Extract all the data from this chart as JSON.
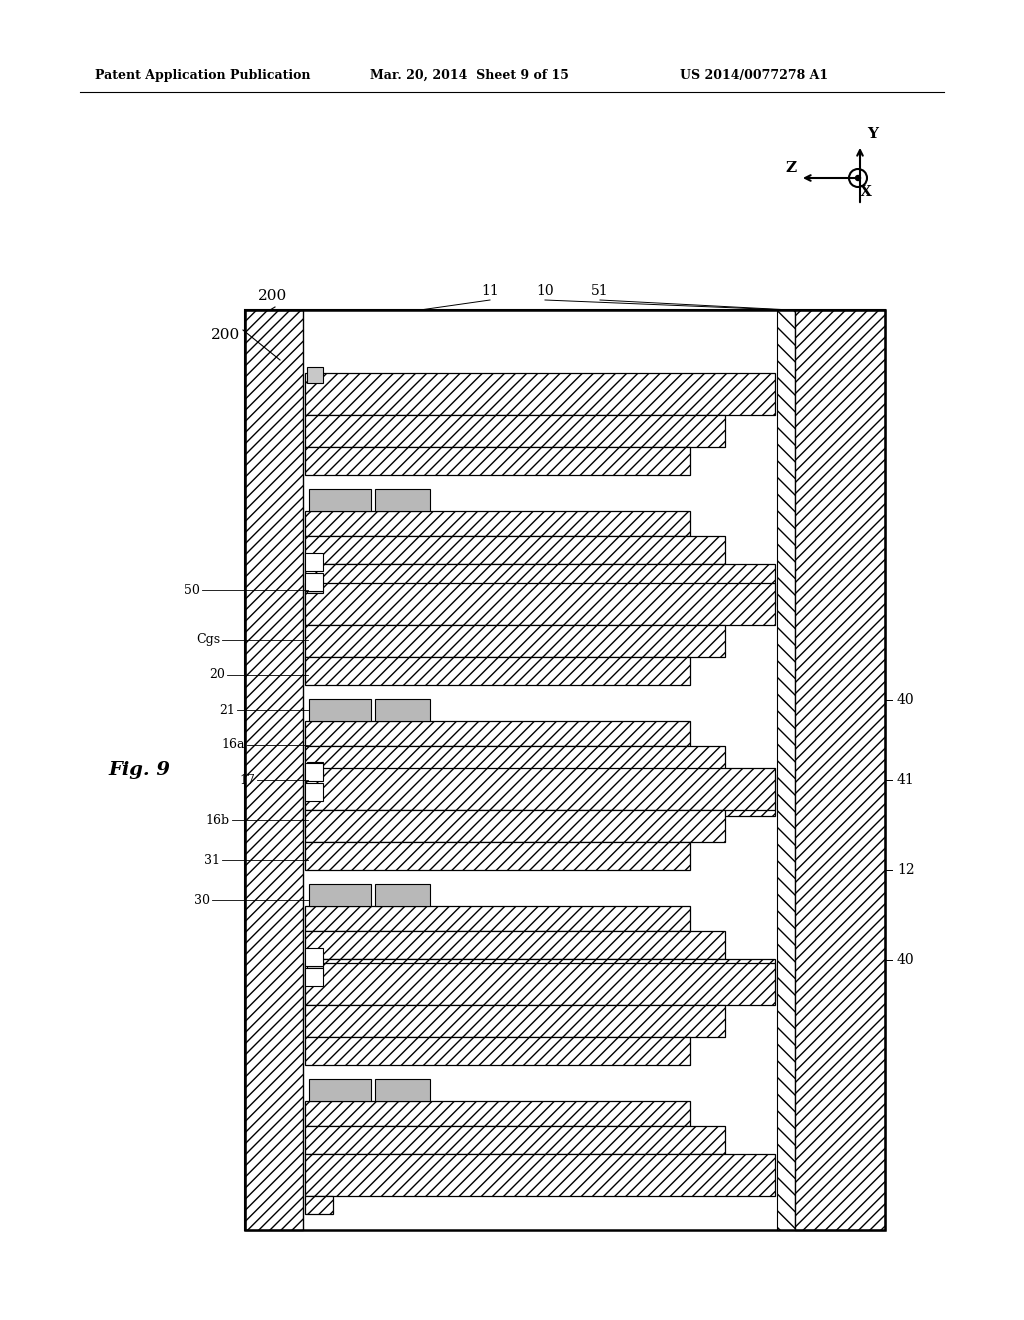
{
  "title_left": "Patent Application Publication",
  "title_mid": "Mar. 20, 2014  Sheet 9 of 15",
  "title_right": "US 2014/0077278 A1",
  "fig_label": "Fig. 9",
  "bg_color": "#ffffff"
}
